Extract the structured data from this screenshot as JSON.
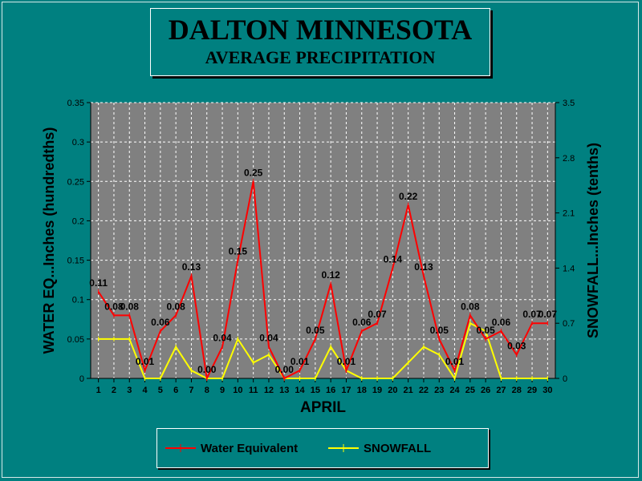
{
  "header": {
    "title": "DALTON MINNESOTA",
    "subtitle": "AVERAGE PRECIPITATION"
  },
  "colors": {
    "background": "#008080",
    "plot_area": "#808080",
    "water_line": "#ff0000",
    "snow_line": "#ffff00"
  },
  "chart_data": {
    "type": "line",
    "xlabel": "APRIL",
    "ylabel": "WATER EQ...Inches (hundredths)",
    "y2label": "SNOWFALL...Inches (tenths)",
    "x": [
      1,
      2,
      3,
      4,
      5,
      6,
      7,
      8,
      9,
      10,
      11,
      12,
      13,
      14,
      15,
      16,
      17,
      18,
      19,
      20,
      21,
      22,
      23,
      24,
      25,
      26,
      27,
      28,
      29,
      30
    ],
    "ylim": [
      0,
      0.35
    ],
    "y_ticks": [
      "0",
      "0.05",
      "0.1",
      "0.15",
      "0.2",
      "0.25",
      "0.3",
      "0.35"
    ],
    "y2lim": [
      0,
      3.5
    ],
    "y2_ticks": [
      "0",
      "0.7",
      "1.4",
      "2.1",
      "2.8",
      "3.5"
    ],
    "grid": true,
    "legend_position": "bottom",
    "series": [
      {
        "name": "Water Equivalent",
        "axis": "left",
        "color": "#ff0000",
        "values": [
          0.11,
          0.08,
          0.08,
          0.01,
          0.06,
          0.08,
          0.13,
          0.0,
          0.04,
          0.15,
          0.25,
          0.04,
          0.0,
          0.01,
          0.05,
          0.12,
          0.01,
          0.06,
          0.07,
          0.14,
          0.22,
          0.13,
          0.05,
          0.01,
          0.08,
          0.05,
          0.06,
          0.03,
          0.07,
          0.07
        ],
        "labels": [
          "0.11",
          "0.08",
          "0.08",
          "0.01",
          "0.06",
          "0.08",
          "0.13",
          "0.00",
          "0.04",
          "0.15",
          "0.25",
          "0.04",
          "0.00",
          "0.01",
          "0.05",
          "0.12",
          "0.01",
          "0.06",
          "0.07",
          "0.14",
          "0.22",
          "0.13",
          "0.05",
          "0.01",
          "0.08",
          "0.05",
          "0.06",
          "0.03",
          "0.07",
          "0.07"
        ]
      },
      {
        "name": "SNOWFALL",
        "axis": "right",
        "color": "#ffff00",
        "values": [
          0.5,
          0.5,
          0.5,
          0,
          0,
          0.4,
          0.1,
          0,
          0,
          0.5,
          0.2,
          0.3,
          0,
          0,
          0,
          0.4,
          0.1,
          0,
          0,
          0,
          0.2,
          0.4,
          0.3,
          0,
          0.7,
          0.6,
          0,
          0,
          0,
          0
        ]
      }
    ]
  }
}
